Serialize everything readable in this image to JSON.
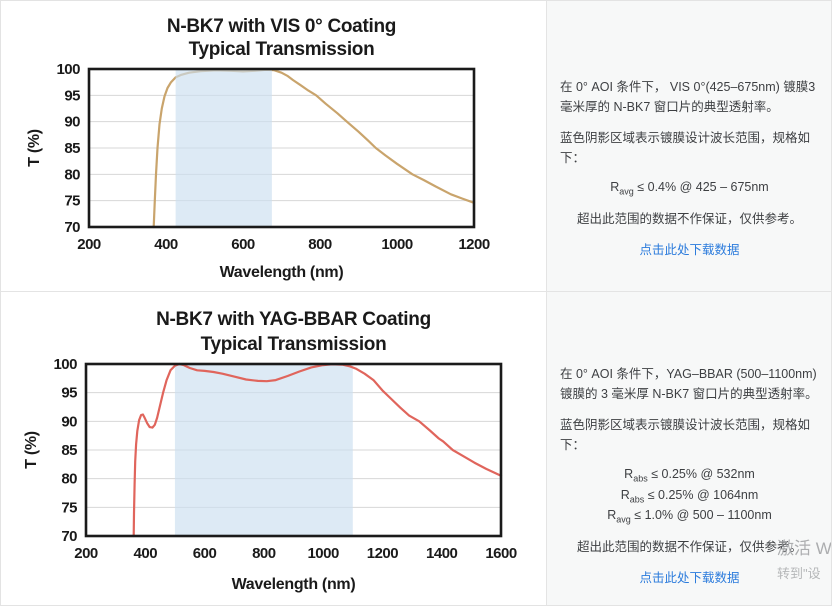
{
  "panels": {
    "top": {
      "p1": "在 0° AOI 条件下， VIS 0°(425–675nm) 镀膜3 毫米厚的 N-BK7 窗口片的典型透射率。",
      "p2": "蓝色阴影区域表示镀膜设计波长范围，规格如下：",
      "specs": [
        {
          "base": "R",
          "sub": "avg",
          "rest": " ≤ 0.4% @ 425 – 675nm"
        }
      ],
      "p3": "超出此范围的数据不作保证，仅供参考。",
      "link": "点击此处下载数据"
    },
    "bottom": {
      "p1": "在 0° AOI 条件下，YAG–BBAR (500–1100nm) 镀膜的 3 毫米厚 N-BK7 窗口片的典型透射率。",
      "p2": "蓝色阴影区域表示镀膜设计波长范围，规格如下：",
      "specs": [
        {
          "base": "R",
          "sub": "abs",
          "rest": " ≤ 0.25% @ 532nm"
        },
        {
          "base": "R",
          "sub": "abs",
          "rest": " ≤ 0.25% @ 1064nm"
        },
        {
          "base": "R",
          "sub": "avg",
          "rest": " ≤ 1.0% @ 500 – 1100nm"
        }
      ],
      "p3": "超出此范围的数据不作保证，仅供参考。",
      "link": "点击此处下载数据"
    }
  },
  "watermark": {
    "line1": "激活 W",
    "line2": "转到\"设"
  },
  "colors": {
    "link_blue": "#2b7bdc",
    "grid_gray": "#d7d7d7",
    "plot_border": "#1a1a1a",
    "panel_bg": "#f7f8f8"
  },
  "chart_data": [
    {
      "type": "line",
      "title_line1": "N-BK7 with VIS 0° Coating",
      "title_line2": "Typical Transmission",
      "xlabel": "Wavelength (nm)",
      "ylabel": "T (%)",
      "xlim": [
        200,
        1200
      ],
      "ylim": [
        70,
        100
      ],
      "xticks": [
        200,
        400,
        600,
        800,
        1000,
        1200
      ],
      "yticks": [
        70,
        75,
        80,
        85,
        90,
        95,
        100
      ],
      "grid": "horizontal-only",
      "legend": "none",
      "line_color": "#c9a46c",
      "shaded_region": {
        "x0": 425,
        "x1": 675,
        "color": "#cbdeef",
        "opacity": 0.65,
        "meaning": "coating design wavelength range"
      },
      "points": [
        [
          368,
          70
        ],
        [
          371,
          75
        ],
        [
          374,
          80
        ],
        [
          378,
          85
        ],
        [
          383,
          89.5
        ],
        [
          389,
          92.5
        ],
        [
          396,
          94.8
        ],
        [
          404,
          96.4
        ],
        [
          413,
          97.5
        ],
        [
          425,
          98.4
        ],
        [
          440,
          98.9
        ],
        [
          460,
          99.3
        ],
        [
          490,
          99.6
        ],
        [
          530,
          99.75
        ],
        [
          570,
          99.65
        ],
        [
          600,
          99.55
        ],
        [
          630,
          99.65
        ],
        [
          660,
          99.85
        ],
        [
          680,
          99.8
        ],
        [
          700,
          99.3
        ],
        [
          715,
          98.7
        ],
        [
          730,
          97.9
        ],
        [
          750,
          96.9
        ],
        [
          770,
          95.9
        ],
        [
          790,
          95.0
        ],
        [
          815,
          93.4
        ],
        [
          845,
          91.6
        ],
        [
          870,
          90.0
        ],
        [
          900,
          88.1
        ],
        [
          925,
          86.4
        ],
        [
          945,
          85.0
        ],
        [
          970,
          83.6
        ],
        [
          1000,
          82.0
        ],
        [
          1040,
          80.0
        ],
        [
          1070,
          78.9
        ],
        [
          1100,
          77.7
        ],
        [
          1140,
          76.2
        ],
        [
          1170,
          75.4
        ],
        [
          1200,
          74.6
        ]
      ]
    },
    {
      "type": "line",
      "title_line1": "N-BK7 with YAG-BBAR Coating",
      "title_line2": "Typical Transmission",
      "xlabel": "Wavelength (nm)",
      "ylabel": "T (%)",
      "xlim": [
        200,
        1600
      ],
      "ylim": [
        70,
        100
      ],
      "xticks": [
        200,
        400,
        600,
        800,
        1000,
        1200,
        1400,
        1600
      ],
      "yticks": [
        70,
        75,
        80,
        85,
        90,
        95,
        100
      ],
      "grid": "horizontal-only",
      "legend": "none",
      "line_color": "#e0655c",
      "shaded_region": {
        "x0": 500,
        "x1": 1100,
        "color": "#cbdeef",
        "opacity": 0.65,
        "meaning": "coating design wavelength range"
      },
      "points": [
        [
          361,
          70
        ],
        [
          362,
          74
        ],
        [
          364,
          79
        ],
        [
          366,
          83
        ],
        [
          369,
          86
        ],
        [
          373,
          88.3
        ],
        [
          379,
          90.2
        ],
        [
          386,
          91.1
        ],
        [
          392,
          91.2
        ],
        [
          398,
          90.6
        ],
        [
          406,
          89.7
        ],
        [
          415,
          89.0
        ],
        [
          424,
          88.9
        ],
        [
          432,
          89.4
        ],
        [
          440,
          90.6
        ],
        [
          450,
          92.8
        ],
        [
          460,
          95.0
        ],
        [
          472,
          97.2
        ],
        [
          485,
          98.9
        ],
        [
          500,
          99.7
        ],
        [
          515,
          100
        ],
        [
          530,
          99.8
        ],
        [
          550,
          99.3
        ],
        [
          575,
          98.9
        ],
        [
          600,
          98.8
        ],
        [
          630,
          98.6
        ],
        [
          660,
          98.3
        ],
        [
          700,
          97.8
        ],
        [
          740,
          97.3
        ],
        [
          780,
          97.05
        ],
        [
          810,
          97.0
        ],
        [
          840,
          97.2
        ],
        [
          880,
          97.9
        ],
        [
          920,
          98.7
        ],
        [
          960,
          99.4
        ],
        [
          1000,
          99.8
        ],
        [
          1030,
          99.95
        ],
        [
          1064,
          99.9
        ],
        [
          1090,
          99.6
        ],
        [
          1110,
          99.2
        ],
        [
          1140,
          98.3
        ],
        [
          1170,
          97.2
        ],
        [
          1200,
          95.4
        ],
        [
          1230,
          93.9
        ],
        [
          1260,
          92.4
        ],
        [
          1290,
          91.0
        ],
        [
          1324,
          90.0
        ],
        [
          1360,
          88.4
        ],
        [
          1390,
          87.0
        ],
        [
          1405,
          86.5
        ],
        [
          1437,
          85.0
        ],
        [
          1470,
          84.0
        ],
        [
          1510,
          82.8
        ],
        [
          1550,
          81.7
        ],
        [
          1600,
          80.5
        ]
      ]
    }
  ]
}
